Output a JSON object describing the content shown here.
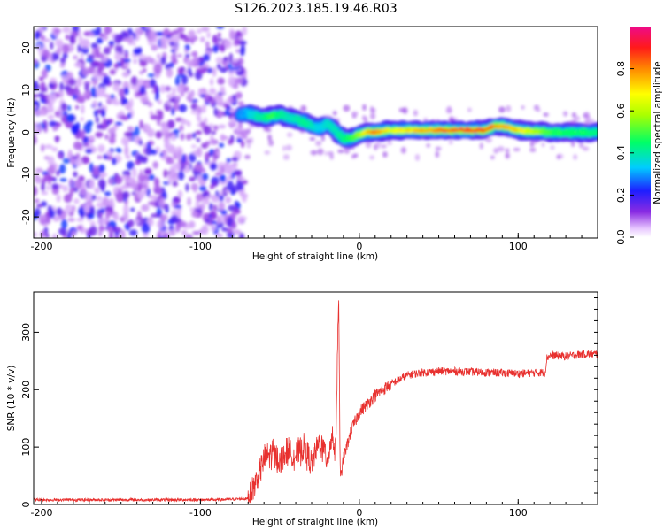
{
  "title": "S126.2023.185.19.46.R03",
  "chart_data": [
    {
      "type": "heatmap",
      "title": "S126.2023.185.19.46.R03",
      "xlabel": "Height of straight line (km)",
      "ylabel": "Frequency (Hz)",
      "xlim": [
        -205,
        150
      ],
      "ylim": [
        -25,
        25
      ],
      "x_ticks": [
        -200,
        -100,
        0,
        100
      ],
      "y_ticks": [
        -20,
        -10,
        0,
        10,
        20
      ],
      "grid": false,
      "colorbar": {
        "label": "Normalized spectral amplitude",
        "range": [
          0,
          1
        ],
        "ticks": [
          0.0,
          0.2,
          0.4,
          0.6,
          0.8
        ],
        "colormap": "rainbow"
      },
      "signal_track": {
        "x": [
          -75,
          -70,
          -65,
          -60,
          -55,
          -50,
          -45,
          -40,
          -35,
          -30,
          -25,
          -20,
          -15,
          -10,
          -5,
          0,
          5,
          10,
          20,
          40,
          60,
          80,
          85,
          90,
          100,
          120,
          150
        ],
        "y": [
          4,
          4.5,
          4,
          3.5,
          3.8,
          4.2,
          3.5,
          3,
          2.5,
          1.5,
          1,
          2,
          0.5,
          -1.5,
          -1.5,
          -0.5,
          0,
          0,
          0.5,
          0.5,
          0.5,
          0.5,
          1.5,
          1.5,
          0.5,
          0,
          0
        ],
        "amplitude": [
          0.3,
          0.35,
          0.4,
          0.45,
          0.5,
          0.45,
          0.4,
          0.4,
          0.45,
          0.4,
          0.35,
          0.4,
          0.4,
          0.45,
          0.5,
          0.6,
          0.8,
          0.85,
          0.7,
          0.8,
          0.9,
          0.9,
          0.85,
          0.8,
          0.75,
          0.5,
          0.45
        ]
      },
      "noise_region": {
        "x_range": [
          -205,
          -72
        ],
        "y_range": [
          -25,
          25
        ],
        "amplitude_range": [
          0.05,
          0.25
        ]
      }
    },
    {
      "type": "line",
      "xlabel": "Height of straight line (km)",
      "ylabel": "SNR (10 * v/v)",
      "xlim": [
        -205,
        150
      ],
      "ylim": [
        0,
        370
      ],
      "x_ticks": [
        -200,
        -100,
        0,
        100
      ],
      "y_ticks": [
        0,
        100,
        200,
        300
      ],
      "grid": false,
      "series": [
        {
          "color": "#e8312f",
          "x": [
            -205,
            -180,
            -150,
            -120,
            -90,
            -70,
            -65,
            -60,
            -55,
            -50,
            -45,
            -40,
            -35,
            -30,
            -25,
            -20,
            -17,
            -15,
            -13,
            -12,
            -10,
            -5,
            0,
            10,
            20,
            30,
            40,
            50,
            60,
            80,
            100,
            117,
            118,
            120,
            130,
            140,
            150
          ],
          "y": [
            8,
            8,
            8,
            8,
            8,
            10,
            40,
            80,
            90,
            75,
            95,
            85,
            100,
            70,
            110,
            80,
            120,
            90,
            355,
            40,
            80,
            130,
            160,
            190,
            210,
            225,
            230,
            232,
            232,
            230,
            228,
            230,
            255,
            260,
            258,
            262,
            262
          ]
        }
      ]
    }
  ]
}
